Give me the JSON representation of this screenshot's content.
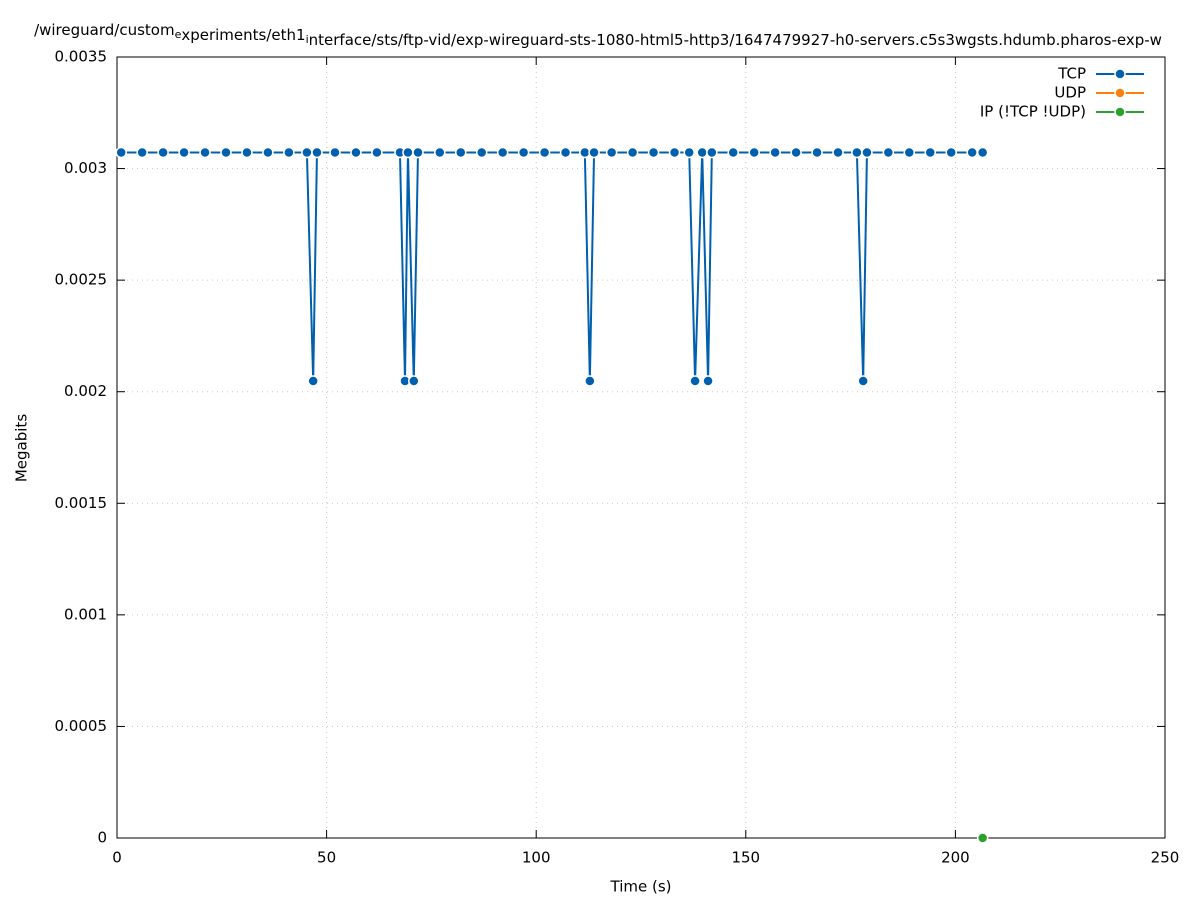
{
  "chart_data": {
    "type": "line",
    "title": "/wireguard/custom_experiments/eth1_interface/sts/ftp-vid/exp-wireguard-sts-1080-html5-http3/1647479927-h0-servers.c5s3wgsts.hdumb.pharos-exp-w",
    "x_label": "Time (s)",
    "y_label": "Megabits",
    "xlim": [
      0,
      250
    ],
    "xticks": [
      0,
      50,
      100,
      150,
      200,
      250
    ],
    "ylim": [
      0,
      0.0035
    ],
    "yticks": [
      0,
      0.0005,
      0.001,
      0.0015,
      0.002,
      0.0025,
      0.003,
      0.0035
    ],
    "grid": true,
    "legend": "top-right",
    "series": [
      {
        "name": "TCP",
        "color": "#0060ad",
        "x": [
          1,
          6,
          11,
          16,
          21,
          26,
          31,
          36,
          41,
          45.3,
          46.8,
          47.7,
          52,
          57,
          62,
          67.5,
          68.7,
          69.4,
          70.8,
          71.8,
          77,
          82,
          87,
          92,
          97,
          102,
          107,
          111.6,
          112.8,
          113.8,
          118,
          123,
          128,
          133,
          136.5,
          137.9,
          139.6,
          141,
          141.9,
          147,
          152,
          157,
          162,
          167,
          172,
          176.5,
          178,
          178.9,
          184,
          189,
          194,
          199,
          204,
          206.5
        ],
        "values": [
          0.003072,
          0.003072,
          0.003072,
          0.003072,
          0.003072,
          0.003072,
          0.003072,
          0.003072,
          0.003072,
          0.003072,
          0.002048,
          0.003072,
          0.003072,
          0.003072,
          0.003072,
          0.003072,
          0.002048,
          0.003072,
          0.002048,
          0.003072,
          0.003072,
          0.003072,
          0.003072,
          0.003072,
          0.003072,
          0.003072,
          0.003072,
          0.003072,
          0.002048,
          0.003072,
          0.003072,
          0.003072,
          0.003072,
          0.003072,
          0.003072,
          0.002048,
          0.003072,
          0.002048,
          0.003072,
          0.003072,
          0.003072,
          0.003072,
          0.003072,
          0.003072,
          0.003072,
          0.003072,
          0.002048,
          0.003072,
          0.003072,
          0.003072,
          0.003072,
          0.003072,
          0.003072,
          0.003072
        ]
      },
      {
        "name": "UDP",
        "color": "#ff7f0e",
        "x": [],
        "values": []
      },
      {
        "name": "IP (!TCP  !UDP)",
        "color": "#2ca02c",
        "x": [
          206.5
        ],
        "values": [
          0
        ]
      }
    ]
  }
}
